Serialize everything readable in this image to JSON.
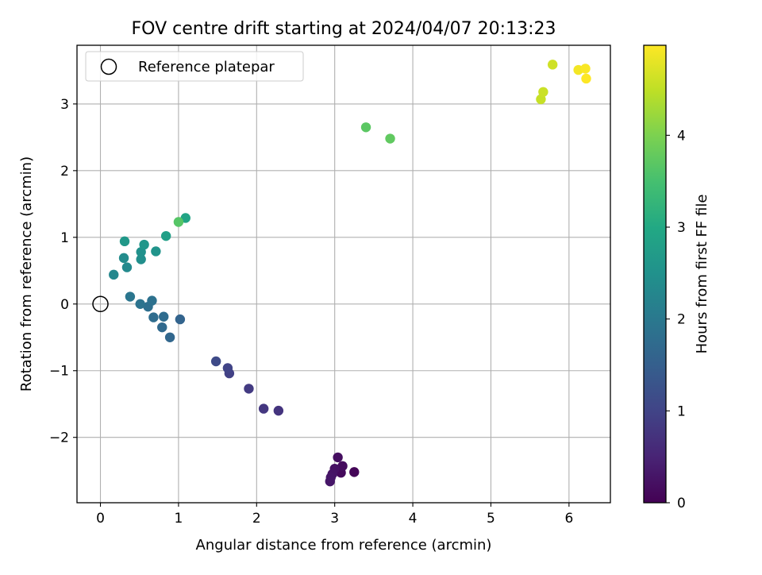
{
  "chart_data": {
    "type": "scatter",
    "title": "FOV centre drift starting at 2024/04/07 20:13:23",
    "xlabel": "Angular distance from reference (arcmin)",
    "ylabel": "Rotation from reference (arcmin)",
    "xlim": [
      -0.3,
      6.53
    ],
    "ylim": [
      -2.98,
      3.88
    ],
    "xticks": [
      0,
      1,
      2,
      3,
      4,
      5,
      6
    ],
    "yticks": [
      -2,
      -1,
      0,
      1,
      2,
      3
    ],
    "xtick_labels": [
      "0",
      "1",
      "2",
      "3",
      "4",
      "5",
      "6"
    ],
    "ytick_labels": [
      "−2",
      "−1",
      "0",
      "1",
      "2",
      "3"
    ],
    "grid": true,
    "legend": {
      "placement": "top-left",
      "entries": [
        "Reference platepar"
      ]
    },
    "reference": {
      "x": 0,
      "y": 0
    },
    "colorbar": {
      "label": "Hours from first FF file",
      "colormap": "viridis",
      "range": [
        0,
        4.98
      ],
      "ticks": [
        0,
        1,
        2,
        3,
        4
      ],
      "tick_labels": [
        "0",
        "1",
        "2",
        "3",
        "4"
      ]
    },
    "points": [
      {
        "x": 3.25,
        "y": -2.52,
        "c": 0.05
      },
      {
        "x": 3.08,
        "y": -2.53,
        "c": 0.12
      },
      {
        "x": 3.1,
        "y": -2.43,
        "c": 0.15
      },
      {
        "x": 3.04,
        "y": -2.3,
        "c": 0.18
      },
      {
        "x": 3.0,
        "y": -2.47,
        "c": 0.22
      },
      {
        "x": 2.97,
        "y": -2.55,
        "c": 0.25
      },
      {
        "x": 2.95,
        "y": -2.6,
        "c": 0.28
      },
      {
        "x": 2.94,
        "y": -2.66,
        "c": 0.3
      },
      {
        "x": 2.28,
        "y": -1.6,
        "c": 0.75
      },
      {
        "x": 2.09,
        "y": -1.57,
        "c": 0.8
      },
      {
        "x": 1.9,
        "y": -1.27,
        "c": 0.85
      },
      {
        "x": 1.65,
        "y": -1.04,
        "c": 0.95
      },
      {
        "x": 1.63,
        "y": -0.96,
        "c": 1.0
      },
      {
        "x": 1.48,
        "y": -0.86,
        "c": 1.1
      },
      {
        "x": 1.02,
        "y": -0.23,
        "c": 1.6
      },
      {
        "x": 0.89,
        "y": -0.5,
        "c": 1.65
      },
      {
        "x": 0.79,
        "y": -0.35,
        "c": 1.7
      },
      {
        "x": 0.81,
        "y": -0.19,
        "c": 1.75
      },
      {
        "x": 0.68,
        "y": -0.2,
        "c": 1.78
      },
      {
        "x": 0.61,
        "y": -0.04,
        "c": 1.82
      },
      {
        "x": 0.66,
        "y": 0.05,
        "c": 1.86
      },
      {
        "x": 0.51,
        "y": 0.0,
        "c": 1.9
      },
      {
        "x": 0.38,
        "y": 0.11,
        "c": 1.95
      },
      {
        "x": 0.17,
        "y": 0.44,
        "c": 2.3
      },
      {
        "x": 0.34,
        "y": 0.55,
        "c": 2.35
      },
      {
        "x": 0.3,
        "y": 0.69,
        "c": 2.4
      },
      {
        "x": 0.52,
        "y": 0.67,
        "c": 2.45
      },
      {
        "x": 0.52,
        "y": 0.78,
        "c": 2.5
      },
      {
        "x": 0.71,
        "y": 0.79,
        "c": 2.55
      },
      {
        "x": 0.56,
        "y": 0.89,
        "c": 2.6
      },
      {
        "x": 0.31,
        "y": 0.94,
        "c": 2.65
      },
      {
        "x": 0.84,
        "y": 1.02,
        "c": 2.8
      },
      {
        "x": 1.09,
        "y": 1.29,
        "c": 2.9
      },
      {
        "x": 1.0,
        "y": 1.23,
        "c": 3.65
      },
      {
        "x": 3.4,
        "y": 2.65,
        "c": 3.7
      },
      {
        "x": 3.71,
        "y": 2.48,
        "c": 3.75
      },
      {
        "x": 5.64,
        "y": 3.07,
        "c": 4.55
      },
      {
        "x": 5.67,
        "y": 3.18,
        "c": 4.58
      },
      {
        "x": 5.79,
        "y": 3.59,
        "c": 4.62
      },
      {
        "x": 6.12,
        "y": 3.51,
        "c": 4.9
      },
      {
        "x": 6.21,
        "y": 3.53,
        "c": 4.95
      },
      {
        "x": 6.22,
        "y": 3.38,
        "c": 4.98
      }
    ]
  }
}
